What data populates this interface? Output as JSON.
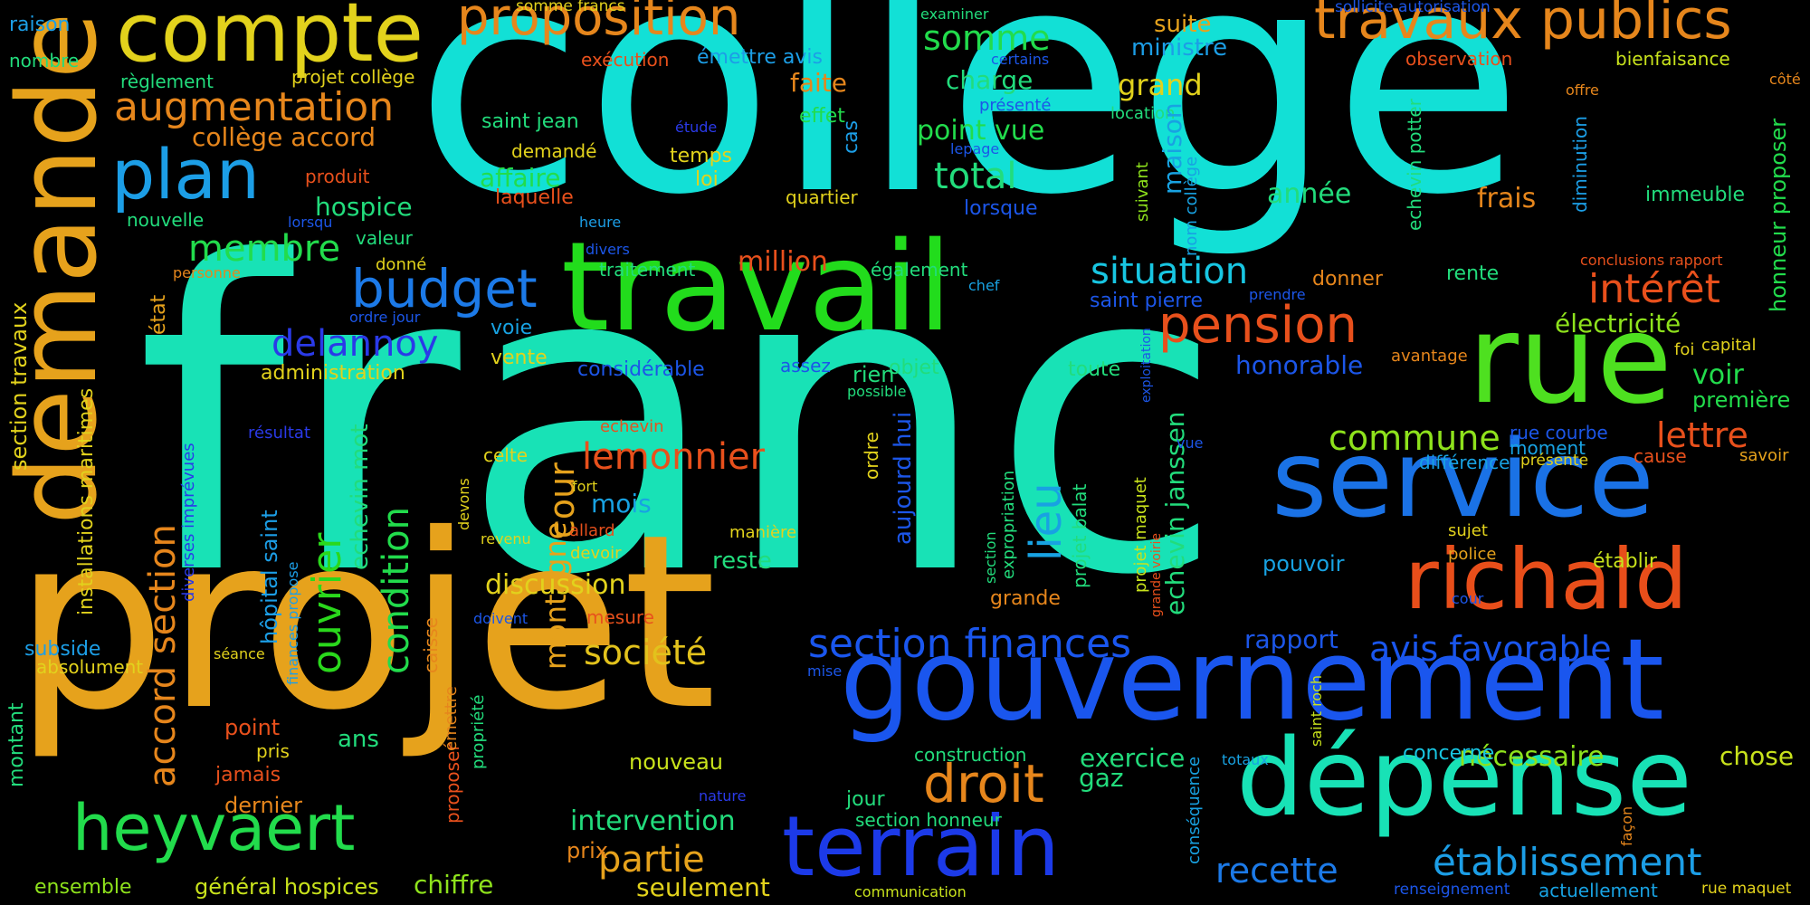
{
  "words": [
    {
      "text": "franc",
      "color": "#18e2b6"
    },
    {
      "text": "collège",
      "color": "#12e0d6"
    },
    {
      "text": "projet",
      "color": "#e6a21c"
    },
    {
      "text": "demande",
      "color": "#e6a21c"
    },
    {
      "text": "gouvernement",
      "color": "#1a56ee"
    },
    {
      "text": "travail",
      "color": "#22dc1c"
    },
    {
      "text": "service",
      "color": "#1a72e6"
    },
    {
      "text": "dépense",
      "color": "#18e2b6"
    },
    {
      "text": "rue",
      "color": "#4ee020"
    },
    {
      "text": "richald",
      "color": "#e84e1a"
    },
    {
      "text": "terrain",
      "color": "#1c3ae8"
    },
    {
      "text": "compte",
      "color": "#e2d21c"
    },
    {
      "text": "plan",
      "color": "#1c9ee6"
    },
    {
      "text": "heyvaert",
      "color": "#22dc4c"
    },
    {
      "text": "proposition",
      "color": "#e6861c"
    },
    {
      "text": "travaux publics",
      "color": "#e6861c"
    },
    {
      "text": "augmentation",
      "color": "#e6861c"
    },
    {
      "text": "budget",
      "color": "#1c7ae8"
    },
    {
      "text": "pension",
      "color": "#e8501c"
    },
    {
      "text": "situation",
      "color": "#18c6e2"
    },
    {
      "text": "droit",
      "color": "#e6861c"
    },
    {
      "text": "établissement",
      "color": "#1c9ee6"
    },
    {
      "text": "section finances",
      "color": "#1a56ee"
    },
    {
      "text": "avis favorable",
      "color": "#1a56ee"
    },
    {
      "text": "membre",
      "color": "#22dc4c"
    },
    {
      "text": "delannoy",
      "color": "#2a3ae8"
    },
    {
      "text": "somme",
      "color": "#22dc4c"
    },
    {
      "text": "total",
      "color": "#22dc7c"
    },
    {
      "text": "intérêt",
      "color": "#e8501c"
    },
    {
      "text": "commune",
      "color": "#8ee21c"
    },
    {
      "text": "lemonnier",
      "color": "#e8501c"
    },
    {
      "text": "société",
      "color": "#e2c21c"
    },
    {
      "text": "partie",
      "color": "#e6a21c"
    },
    {
      "text": "recette",
      "color": "#1c7ae8"
    },
    {
      "text": "lettre",
      "color": "#e8501c"
    },
    {
      "text": "ouvrier",
      "color": "#2ad81c"
    },
    {
      "text": "condition",
      "color": "#22dc4c"
    },
    {
      "text": "lieu",
      "color": "#18a2e2"
    },
    {
      "text": "cour",
      "color": "#e6a21c"
    },
    {
      "text": "montagne",
      "color": "#e6a21c"
    },
    {
      "text": "accord section",
      "color": "#e6861c"
    },
    {
      "text": "collège accord",
      "color": "#e6861c"
    },
    {
      "text": "affaire",
      "color": "#22dc4c"
    },
    {
      "text": "hospice",
      "color": "#22dc7c"
    },
    {
      "text": "charge",
      "color": "#22dc7c"
    },
    {
      "text": "point vue",
      "color": "#22dc4c"
    },
    {
      "text": "ministre",
      "color": "#1c9ee6"
    },
    {
      "text": "suite",
      "color": "#e6a21c"
    },
    {
      "text": "grand",
      "color": "#e2d21c"
    },
    {
      "text": "frais",
      "color": "#e6861c"
    },
    {
      "text": "année",
      "color": "#22dc7c"
    },
    {
      "text": "discussion",
      "color": "#e2d21c"
    },
    {
      "text": "intervention",
      "color": "#22dc7c"
    },
    {
      "text": "exercice",
      "color": "#22dc7c"
    },
    {
      "text": "gaz",
      "color": "#22dc7c"
    },
    {
      "text": "nécessaire",
      "color": "#8ee21c"
    },
    {
      "text": "chose",
      "color": "#c8e21c"
    },
    {
      "text": "million",
      "color": "#e8501c"
    },
    {
      "text": "faite",
      "color": "#e6861c"
    },
    {
      "text": "électricité",
      "color": "#8ee21c"
    },
    {
      "text": "honorable",
      "color": "#1c56e8"
    },
    {
      "text": "pouvoir",
      "color": "#18a2e2"
    },
    {
      "text": "voir",
      "color": "#22dc4c"
    },
    {
      "text": "première",
      "color": "#22dc4c"
    },
    {
      "text": "rapport",
      "color": "#1c56e8"
    },
    {
      "text": "mois",
      "color": "#18a2e2"
    },
    {
      "text": "reste",
      "color": "#22dc7c"
    },
    {
      "text": "nouveau",
      "color": "#c8e21c"
    },
    {
      "text": "seulement",
      "color": "#e2d21c"
    },
    {
      "text": "chiffre",
      "color": "#8ee21c"
    },
    {
      "text": "général hospices",
      "color": "#c8e21c"
    },
    {
      "text": "ensemble",
      "color": "#8ee21c"
    },
    {
      "text": "prix",
      "color": "#e6861c"
    },
    {
      "text": "point",
      "color": "#e8501c"
    },
    {
      "text": "jamais",
      "color": "#e8501c"
    },
    {
      "text": "dernier",
      "color": "#e6861c"
    },
    {
      "text": "ans",
      "color": "#22dc7c"
    },
    {
      "text": "pris",
      "color": "#e2d21c"
    },
    {
      "text": "administration",
      "color": "#e2d21c"
    },
    {
      "text": "voie",
      "color": "#18a2e2"
    },
    {
      "text": "vente",
      "color": "#e2d21c"
    },
    {
      "text": "considérable",
      "color": "#1c56e8"
    },
    {
      "text": "assez",
      "color": "#1c56e8"
    },
    {
      "text": "objet",
      "color": "#22dc7c"
    },
    {
      "text": "rien",
      "color": "#22dc7c"
    },
    {
      "text": "toute",
      "color": "#22dc7c"
    },
    {
      "text": "donner",
      "color": "#e6861c"
    },
    {
      "text": "rente",
      "color": "#22dc7c"
    },
    {
      "text": "capital",
      "color": "#e2d21c"
    },
    {
      "text": "foi",
      "color": "#e2d21c"
    },
    {
      "text": "avantage",
      "color": "#e6861c"
    },
    {
      "text": "moment",
      "color": "#18a2e2"
    },
    {
      "text": "différence",
      "color": "#18a2e2"
    },
    {
      "text": "rue courbe",
      "color": "#1c56e8"
    },
    {
      "text": "présente",
      "color": "#e2d21c"
    },
    {
      "text": "cause",
      "color": "#e8501c"
    },
    {
      "text": "savoir",
      "color": "#e6a21c"
    },
    {
      "text": "sujet",
      "color": "#e2d21c"
    },
    {
      "text": "police",
      "color": "#e6a21c"
    },
    {
      "text": "établir",
      "color": "#c8e21c"
    },
    {
      "text": "cour",
      "color": "#1c56e8"
    },
    {
      "text": "concerne",
      "color": "#18c6e2"
    },
    {
      "text": "renseignement",
      "color": "#1c56e8"
    },
    {
      "text": "actuellement",
      "color": "#18a2e2"
    },
    {
      "text": "rue maquet",
      "color": "#e2d21c"
    },
    {
      "text": "construction",
      "color": "#22dc7c"
    },
    {
      "text": "totaux",
      "color": "#18a2e2"
    },
    {
      "text": "jour",
      "color": "#22dc7c"
    },
    {
      "text": "section honneur",
      "color": "#22dc7c"
    },
    {
      "text": "nature",
      "color": "#2a3ae8"
    },
    {
      "text": "mise",
      "color": "#1c56e8"
    },
    {
      "text": "communication",
      "color": "#c8e21c"
    },
    {
      "text": "mesure",
      "color": "#e8501c"
    },
    {
      "text": "doivent",
      "color": "#1c56e8"
    },
    {
      "text": "devoir",
      "color": "#e2d21c"
    },
    {
      "text": "allard",
      "color": "#e8501c"
    },
    {
      "text": "revenu",
      "color": "#e2d21c"
    },
    {
      "text": "celte",
      "color": "#e2d21c"
    },
    {
      "text": "fort",
      "color": "#e2d21c"
    },
    {
      "text": "manière",
      "color": "#e2d21c"
    },
    {
      "text": "echevin",
      "color": "#e8501c"
    },
    {
      "text": "grande",
      "color": "#e6861c"
    },
    {
      "text": "temps",
      "color": "#e2d21c"
    },
    {
      "text": "loi",
      "color": "#e2d21c"
    },
    {
      "text": "quartier",
      "color": "#e2d21c"
    },
    {
      "text": "demandé",
      "color": "#e2d21c"
    },
    {
      "text": "saint jean",
      "color": "#22dc7c"
    },
    {
      "text": "effet",
      "color": "#22dc4c"
    },
    {
      "text": "laquelle",
      "color": "#e8501c"
    },
    {
      "text": "produit",
      "color": "#e8501c"
    },
    {
      "text": "nouvelle",
      "color": "#22dc7c"
    },
    {
      "text": "lorsqu",
      "color": "#1c56e8"
    },
    {
      "text": "heure",
      "color": "#1c9ee6"
    },
    {
      "text": "valeur",
      "color": "#22dc7c"
    },
    {
      "text": "donné",
      "color": "#e2d21c"
    },
    {
      "text": "personne",
      "color": "#e6861c"
    },
    {
      "text": "ordre jour",
      "color": "#1c56e8"
    },
    {
      "text": "traitement",
      "color": "#22dc7c"
    },
    {
      "text": "divers",
      "color": "#1c56e8"
    },
    {
      "text": "également",
      "color": "#22dc7c"
    },
    {
      "text": "chef",
      "color": "#18a2e2"
    },
    {
      "text": "saint pierre",
      "color": "#1c56e8"
    },
    {
      "text": "prendre",
      "color": "#1c56e8"
    },
    {
      "text": "possible",
      "color": "#22dc7c"
    },
    {
      "text": "lorsque",
      "color": "#1c56e8"
    },
    {
      "text": "présenté",
      "color": "#1c56e8"
    },
    {
      "text": "lepage",
      "color": "#1c56e8"
    },
    {
      "text": "certains",
      "color": "#1c56e8"
    },
    {
      "text": "étude",
      "color": "#2a3ae8"
    },
    {
      "text": "location",
      "color": "#22dc7c"
    },
    {
      "text": "exécution",
      "color": "#e8501c"
    },
    {
      "text": "émettre avis",
      "color": "#1c9ee6"
    },
    {
      "text": "examiner",
      "color": "#22dc7c"
    },
    {
      "text": "sollicite autorisation",
      "color": "#1c56e8"
    },
    {
      "text": "somme francs",
      "color": "#e2d21c"
    },
    {
      "text": "observation",
      "color": "#e8501c"
    },
    {
      "text": "bienfaisance",
      "color": "#c8e21c"
    },
    {
      "text": "offre",
      "color": "#e6861c"
    },
    {
      "text": "côté",
      "color": "#e6861c"
    },
    {
      "text": "immeuble",
      "color": "#22dc7c"
    },
    {
      "text": "conclusions rapport",
      "color": "#e8501c"
    },
    {
      "text": "raison",
      "color": "#1c9ee6"
    },
    {
      "text": "nombre",
      "color": "#22dc7c"
    },
    {
      "text": "règlement",
      "color": "#22dc7c"
    },
    {
      "text": "projet collège",
      "color": "#e2d21c"
    },
    {
      "text": "état",
      "color": "#e6a21c"
    },
    {
      "text": "résultat",
      "color": "#2a3ae8"
    },
    {
      "text": "subside",
      "color": "#1c9ee6"
    },
    {
      "text": "absolument",
      "color": "#e2d21c"
    },
    {
      "text": "montant",
      "color": "#22dc7c"
    },
    {
      "text": "séance",
      "color": "#e2d21c"
    },
    {
      "text": "section travaux",
      "color": "#e2d21c"
    },
    {
      "text": "installations maritimes",
      "color": "#e2d21c"
    },
    {
      "text": "diverses imprévues",
      "color": "#2a3ae8"
    },
    {
      "text": "hôpital saint",
      "color": "#1c9ee6"
    },
    {
      "text": "finances propose",
      "color": "#1c9ee6"
    },
    {
      "text": "echevin mot",
      "color": "#22dc7c"
    },
    {
      "text": "caisse",
      "color": "#e6861c"
    },
    {
      "text": "proposer",
      "color": "#e8501c"
    },
    {
      "text": "émettre",
      "color": "#e6861c"
    },
    {
      "text": "propriété",
      "color": "#22dc7c"
    },
    {
      "text": "devons",
      "color": "#e2d21c"
    },
    {
      "text": "aujourd hui",
      "color": "#1c56e8"
    },
    {
      "text": "ordre",
      "color": "#e2d21c"
    },
    {
      "text": "cas",
      "color": "#1c9ee6"
    },
    {
      "text": "section",
      "color": "#22dc7c"
    },
    {
      "text": "expropriation",
      "color": "#22dc7c"
    },
    {
      "text": "projet balat",
      "color": "#22dc7c"
    },
    {
      "text": "projet maquet",
      "color": "#c8e21c"
    },
    {
      "text": "exploitation",
      "color": "#1c56e8"
    },
    {
      "text": "grande voirie",
      "color": "#e8501c"
    },
    {
      "text": "echevin janssen",
      "color": "#22dc7c"
    },
    {
      "text": "maison",
      "color": "#18a2e2"
    },
    {
      "text": "nom collège",
      "color": "#18a2e2"
    },
    {
      "text": "suivant",
      "color": "#8ee21c"
    },
    {
      "text": "echevin potter",
      "color": "#22dc7c"
    },
    {
      "text": "vue",
      "color": "#1c56e8"
    },
    {
      "text": "conséquence",
      "color": "#18a2e2"
    },
    {
      "text": "saint roch",
      "color": "#c8e21c"
    },
    {
      "text": "diminution",
      "color": "#1c9ee6"
    },
    {
      "text": "honneur proposer",
      "color": "#22dc4c"
    },
    {
      "text": "façon",
      "color": "#e6861c"
    }
  ]
}
